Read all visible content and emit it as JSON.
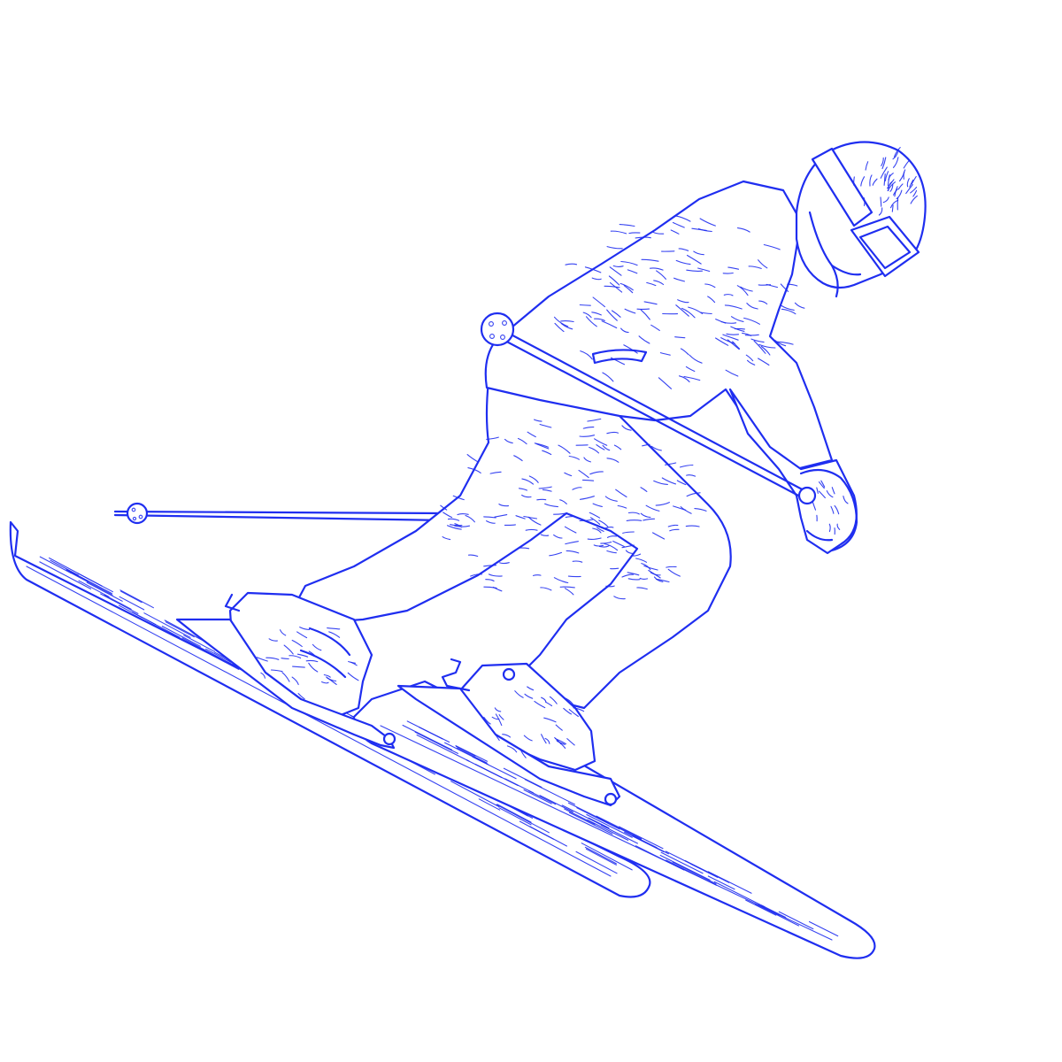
{
  "illustration": {
    "subject": "skier",
    "style": "blue line drawing",
    "ink_color": "#1f2ef0",
    "background": "#ffffff"
  }
}
